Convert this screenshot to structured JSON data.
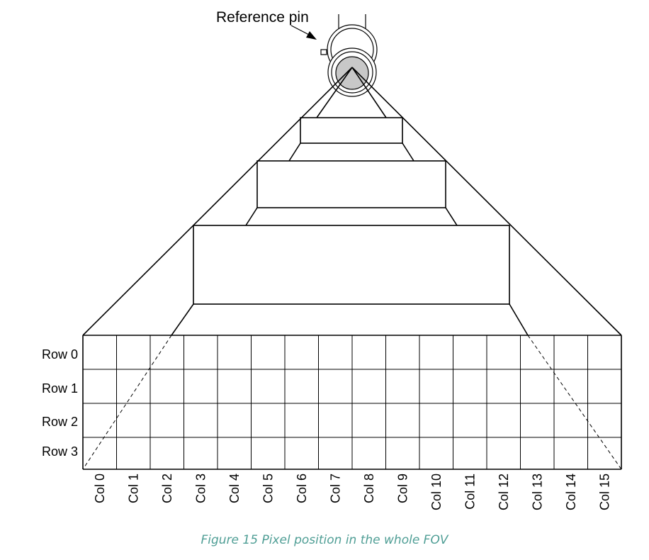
{
  "diagram": {
    "reference_label": "Reference pin",
    "rows": [
      "Row 0",
      "Row 1",
      "Row 2",
      "Row 3"
    ],
    "columns": [
      "Col 0",
      "Col 1",
      "Col 2",
      "Col 3",
      "Col 4",
      "Col 5",
      "Col 6",
      "Col 7",
      "Col 8",
      "Col 9",
      "Col 10",
      "Col 11",
      "Col 12",
      "Col 13",
      "Col 14",
      "Col 15"
    ],
    "colors": {
      "line": "#000000",
      "lens_fill": "#c8c8c8",
      "caption": "#4f9e95"
    }
  },
  "caption": "Figure 15 Pixel position in the whole FOV"
}
